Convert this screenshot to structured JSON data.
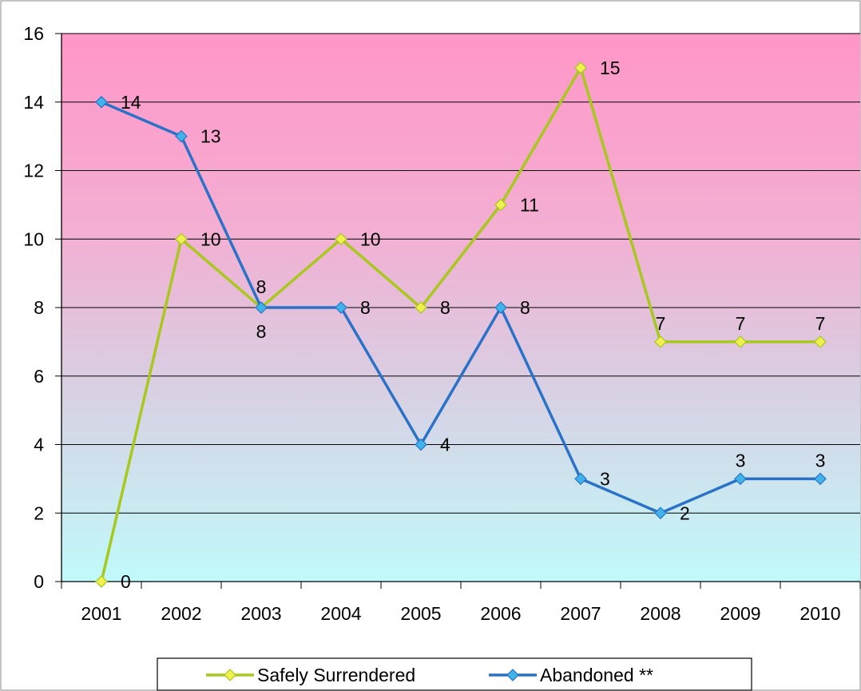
{
  "chart_data": {
    "type": "line",
    "title": "",
    "xlabel": "",
    "ylabel": "",
    "categories": [
      "2001",
      "2002",
      "2003",
      "2004",
      "2005",
      "2006",
      "2007",
      "2008",
      "2009",
      "2010"
    ],
    "ylim": [
      0,
      16
    ],
    "yticks": [
      0,
      2,
      4,
      6,
      8,
      10,
      12,
      14,
      16
    ],
    "grid": true,
    "legend_position": "bottom",
    "series": [
      {
        "name": "Safely Surrendered",
        "values": [
          0,
          10,
          8,
          10,
          8,
          11,
          15,
          7,
          7,
          7
        ],
        "color": "#a8c81e",
        "marker_color": "#f0f050"
      },
      {
        "name": "Abandoned **",
        "values": [
          14,
          13,
          8,
          8,
          4,
          8,
          3,
          2,
          3,
          3
        ],
        "color": "#2a72c8",
        "marker_color": "#40b4e8"
      }
    ],
    "background_gradient": {
      "top": "#ff96c8",
      "bottom": "#c0fafa"
    }
  }
}
